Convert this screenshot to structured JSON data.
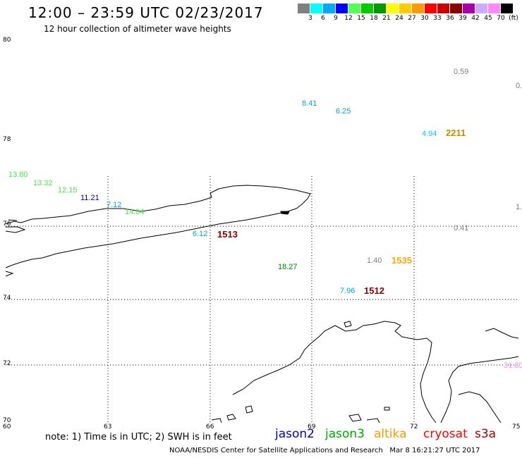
{
  "header": {
    "title": "12:00 – 23:59 UTC 02/23/2017",
    "subtitle": "12 hour collection of altimeter wave heights"
  },
  "scale": {
    "colors": [
      "#808080",
      "#00ffff",
      "#00aaff",
      "#0000ff",
      "#55ff55",
      "#00cc00",
      "#009900",
      "#ffff00",
      "#ffcc00",
      "#ff9900",
      "#ff0000",
      "#cc0000",
      "#880000",
      "#aa00aa",
      "#ccaaff",
      "#ff88ff",
      "#000000"
    ],
    "labels": [
      "3",
      "6",
      "9",
      "12",
      "15",
      "18",
      "21",
      "24",
      "27",
      "30",
      "33",
      "36",
      "39",
      "42",
      "45",
      "70",
      "(ft)"
    ]
  },
  "axes": {
    "lat_labels": [
      "80",
      "78",
      "76",
      "74",
      "72",
      "70"
    ],
    "lon_labels": [
      "60",
      "63",
      "66",
      "69",
      "72",
      "75"
    ]
  },
  "observations": [
    {
      "text": "0.59",
      "color": "#808080"
    },
    {
      "text": "0.",
      "color": "#808080"
    },
    {
      "text": "8.41",
      "color": "#00aadd"
    },
    {
      "text": "6.25",
      "color": "#00aadd"
    },
    {
      "text": "4.94",
      "color": "#00ccee"
    },
    {
      "text": "2211",
      "color": "#cc8800"
    },
    {
      "text": "13.80",
      "color": "#44ee44"
    },
    {
      "text": "13.32",
      "color": "#44ee44"
    },
    {
      "text": "12.15",
      "color": "#44ee44"
    },
    {
      "text": "11.21",
      "color": "#0000cc"
    },
    {
      "text": "7.12",
      "color": "#00aadd"
    },
    {
      "text": "14.04",
      "color": "#44ee44"
    },
    {
      "text": "1.",
      "color": "#808080"
    },
    {
      "text": "6.12",
      "color": "#00aadd"
    },
    {
      "text": "1513",
      "color": "#880000"
    },
    {
      "text": "0.41",
      "color": "#808080"
    },
    {
      "text": "1.40",
      "color": "#808080"
    },
    {
      "text": "1535",
      "color": "#ffaa00"
    },
    {
      "text": "18.27",
      "color": "#008800"
    },
    {
      "text": "7.96",
      "color": "#00aadd"
    },
    {
      "text": "1512",
      "color": "#880000"
    },
    {
      "text": "31.80",
      "color": "#ff88ff"
    }
  ],
  "footer": {
    "note": "note:  1) Time is in UTC; 2) SWH is in feet",
    "satellites": [
      {
        "name": "jason2",
        "color": "#0000cc"
      },
      {
        "name": "jason3",
        "color": "#00aa00"
      },
      {
        "name": "altika",
        "color": "#ff9900"
      },
      {
        "name": "cryosat",
        "color": "#ff0000"
      },
      {
        "name": "s3a",
        "color": "#aa0000"
      }
    ],
    "credit": "NOAA/NESDIS Center for Satellite Applications and Research",
    "timestamp": "Mar  8 16:21:27 UTC 2017"
  }
}
